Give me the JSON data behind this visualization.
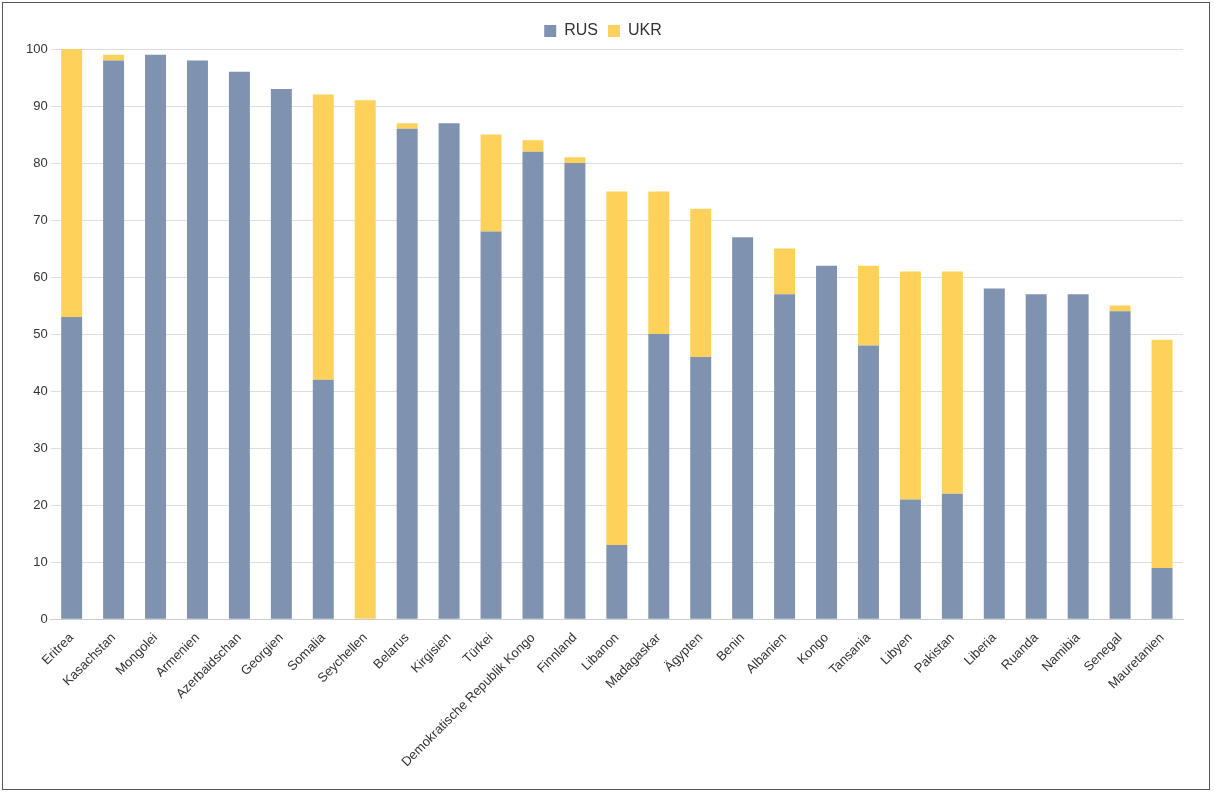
{
  "chart_data": {
    "type": "bar",
    "stacked": true,
    "legend": "top",
    "grid": "y",
    "categories": [
      "Eritrea",
      "Kasachstan",
      "Mongolei",
      "Armenien",
      "Azerbaidschan",
      "Georgien",
      "Somalia",
      "Seychellen",
      "Belarus",
      "Kirgisien",
      "Türkei",
      "Demokratische Republik Kongo",
      "Finnland",
      "Libanon",
      "Madagaskar",
      "Ägypten",
      "Benin",
      "Albanien",
      "Kongo",
      "Tansania",
      "Libyen",
      "Pakistan",
      "Liberia",
      "Ruanda",
      "Namibia",
      "Senegal",
      "Mauretanien"
    ],
    "series": [
      {
        "name": "RUS",
        "color": "#7f93b0",
        "values": [
          53,
          98,
          99,
          98,
          96,
          93,
          42,
          0,
          86,
          87,
          68,
          82,
          80,
          13,
          50,
          46,
          67,
          57,
          62,
          48,
          21,
          22,
          58,
          57,
          57,
          54,
          9
        ]
      },
      {
        "name": "UKR",
        "color": "#fdd15a",
        "values": [
          47,
          1,
          0,
          0,
          0,
          0,
          50,
          91,
          1,
          0,
          17,
          2,
          1,
          62,
          25,
          26,
          0,
          8,
          0,
          14,
          40,
          39,
          0,
          0,
          0,
          1,
          40
        ]
      }
    ],
    "ylim": [
      0,
      100
    ],
    "yticks": [
      0,
      10,
      20,
      30,
      40,
      50,
      60,
      70,
      80,
      90,
      100
    ]
  }
}
